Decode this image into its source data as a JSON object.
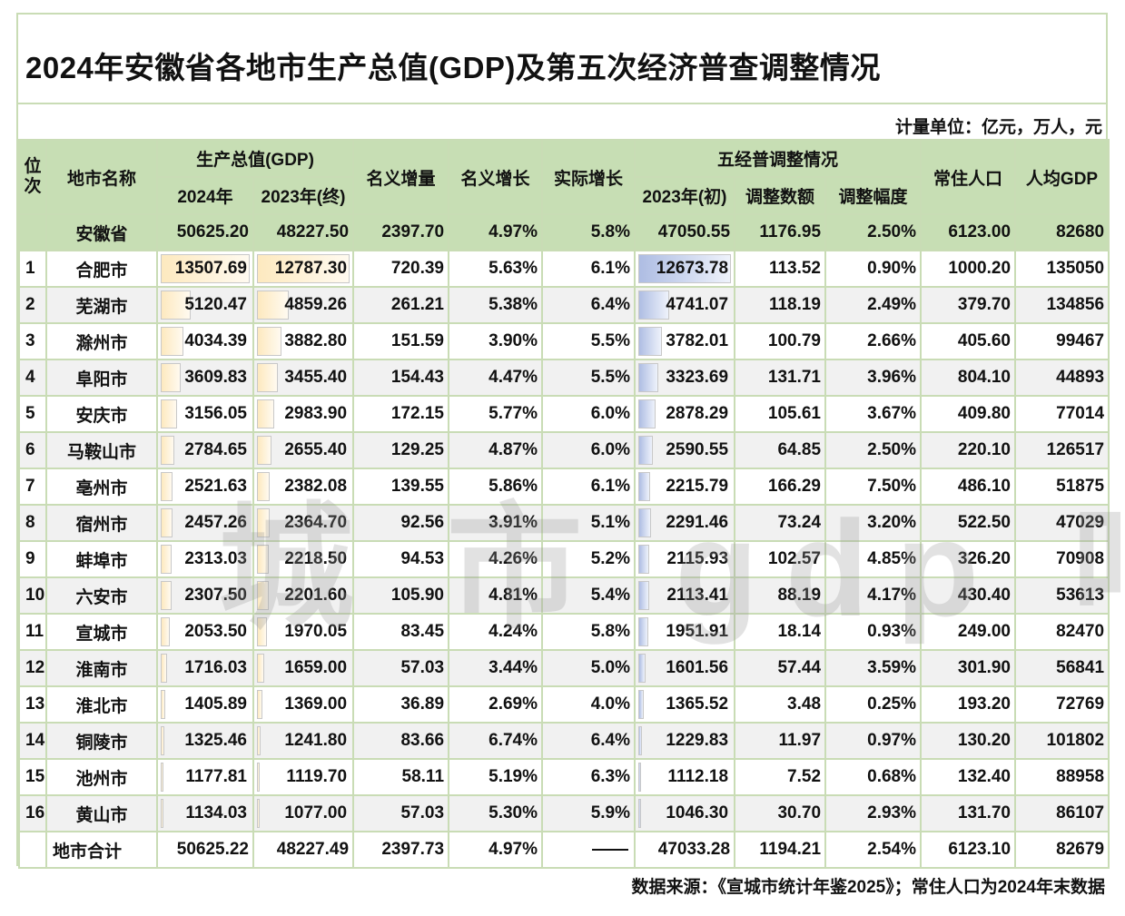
{
  "title": "2024年安徽省各地市生产总值(GDP)及第五次经济普查调整情况",
  "unit": "计量单位：亿元，万人，元",
  "watermark": "城 市 gdp 吧",
  "headers": {
    "rank": "位次",
    "city": "地市名称",
    "gdp_group": "生产总值(GDP)",
    "gdp_2024": "2024年",
    "gdp_2023_final": "2023年(终)",
    "nominal_increase": "名义增量",
    "nominal_growth": "名义增长",
    "real_growth": "实际增长",
    "census_group": "五经普调整情况",
    "gdp_2023_initial": "2023年(初)",
    "adjust_amount": "调整数额",
    "adjust_rate": "调整幅度",
    "population": "常住人口",
    "gdp_per_capita": "人均GDP"
  },
  "province": {
    "name": "安徽省",
    "gdp_2024": "50625.20",
    "gdp_2023_final": "48227.50",
    "nominal_increase": "2397.70",
    "nominal_growth": "4.97%",
    "real_growth": "5.8%",
    "gdp_2023_initial": "47050.55",
    "adjust_amount": "1176.95",
    "adjust_rate": "2.50%",
    "population": "6123.00",
    "gdp_per_capita": "82680"
  },
  "rows": [
    {
      "rank": "1",
      "city": "合肥市",
      "gdp_2024": "13507.69",
      "gdp_2023_final": "12787.30",
      "nominal_increase": "720.39",
      "nominal_growth": "5.63%",
      "real_growth": "6.1%",
      "gdp_2023_initial": "12673.78",
      "adjust_amount": "113.52",
      "adjust_rate": "0.90%",
      "population": "1000.20",
      "gdp_per_capita": "135050"
    },
    {
      "rank": "2",
      "city": "芜湖市",
      "gdp_2024": "5120.47",
      "gdp_2023_final": "4859.26",
      "nominal_increase": "261.21",
      "nominal_growth": "5.38%",
      "real_growth": "6.4%",
      "gdp_2023_initial": "4741.07",
      "adjust_amount": "118.19",
      "adjust_rate": "2.49%",
      "population": "379.70",
      "gdp_per_capita": "134856"
    },
    {
      "rank": "3",
      "city": "滁州市",
      "gdp_2024": "4034.39",
      "gdp_2023_final": "3882.80",
      "nominal_increase": "151.59",
      "nominal_growth": "3.90%",
      "real_growth": "5.5%",
      "gdp_2023_initial": "3782.01",
      "adjust_amount": "100.79",
      "adjust_rate": "2.66%",
      "population": "405.60",
      "gdp_per_capita": "99467"
    },
    {
      "rank": "4",
      "city": "阜阳市",
      "gdp_2024": "3609.83",
      "gdp_2023_final": "3455.40",
      "nominal_increase": "154.43",
      "nominal_growth": "4.47%",
      "real_growth": "5.5%",
      "gdp_2023_initial": "3323.69",
      "adjust_amount": "131.71",
      "adjust_rate": "3.96%",
      "population": "804.10",
      "gdp_per_capita": "44893"
    },
    {
      "rank": "5",
      "city": "安庆市",
      "gdp_2024": "3156.05",
      "gdp_2023_final": "2983.90",
      "nominal_increase": "172.15",
      "nominal_growth": "5.77%",
      "real_growth": "6.0%",
      "gdp_2023_initial": "2878.29",
      "adjust_amount": "105.61",
      "adjust_rate": "3.67%",
      "population": "409.80",
      "gdp_per_capita": "77014"
    },
    {
      "rank": "6",
      "city": "马鞍山市",
      "gdp_2024": "2784.65",
      "gdp_2023_final": "2655.40",
      "nominal_increase": "129.25",
      "nominal_growth": "4.87%",
      "real_growth": "6.0%",
      "gdp_2023_initial": "2590.55",
      "adjust_amount": "64.85",
      "adjust_rate": "2.50%",
      "population": "220.10",
      "gdp_per_capita": "126517"
    },
    {
      "rank": "7",
      "city": "亳州市",
      "gdp_2024": "2521.63",
      "gdp_2023_final": "2382.08",
      "nominal_increase": "139.55",
      "nominal_growth": "5.86%",
      "real_growth": "6.1%",
      "gdp_2023_initial": "2215.79",
      "adjust_amount": "166.29",
      "adjust_rate": "7.50%",
      "population": "486.10",
      "gdp_per_capita": "51875"
    },
    {
      "rank": "8",
      "city": "宿州市",
      "gdp_2024": "2457.26",
      "gdp_2023_final": "2364.70",
      "nominal_increase": "92.56",
      "nominal_growth": "3.91%",
      "real_growth": "5.1%",
      "gdp_2023_initial": "2291.46",
      "adjust_amount": "73.24",
      "adjust_rate": "3.20%",
      "population": "522.50",
      "gdp_per_capita": "47029"
    },
    {
      "rank": "9",
      "city": "蚌埠市",
      "gdp_2024": "2313.03",
      "gdp_2023_final": "2218.50",
      "nominal_increase": "94.53",
      "nominal_growth": "4.26%",
      "real_growth": "5.2%",
      "gdp_2023_initial": "2115.93",
      "adjust_amount": "102.57",
      "adjust_rate": "4.85%",
      "population": "326.20",
      "gdp_per_capita": "70908"
    },
    {
      "rank": "10",
      "city": "六安市",
      "gdp_2024": "2307.50",
      "gdp_2023_final": "2201.60",
      "nominal_increase": "105.90",
      "nominal_growth": "4.81%",
      "real_growth": "5.4%",
      "gdp_2023_initial": "2113.41",
      "adjust_amount": "88.19",
      "adjust_rate": "4.17%",
      "population": "430.40",
      "gdp_per_capita": "53613"
    },
    {
      "rank": "11",
      "city": "宣城市",
      "gdp_2024": "2053.50",
      "gdp_2023_final": "1970.05",
      "nominal_increase": "83.45",
      "nominal_growth": "4.24%",
      "real_growth": "5.8%",
      "gdp_2023_initial": "1951.91",
      "adjust_amount": "18.14",
      "adjust_rate": "0.93%",
      "population": "249.00",
      "gdp_per_capita": "82470"
    },
    {
      "rank": "12",
      "city": "淮南市",
      "gdp_2024": "1716.03",
      "gdp_2023_final": "1659.00",
      "nominal_increase": "57.03",
      "nominal_growth": "3.44%",
      "real_growth": "5.0%",
      "gdp_2023_initial": "1601.56",
      "adjust_amount": "57.44",
      "adjust_rate": "3.59%",
      "population": "301.90",
      "gdp_per_capita": "56841"
    },
    {
      "rank": "13",
      "city": "淮北市",
      "gdp_2024": "1405.89",
      "gdp_2023_final": "1369.00",
      "nominal_increase": "36.89",
      "nominal_growth": "2.69%",
      "real_growth": "4.0%",
      "gdp_2023_initial": "1365.52",
      "adjust_amount": "3.48",
      "adjust_rate": "0.25%",
      "population": "193.20",
      "gdp_per_capita": "72769"
    },
    {
      "rank": "14",
      "city": "铜陵市",
      "gdp_2024": "1325.46",
      "gdp_2023_final": "1241.80",
      "nominal_increase": "83.66",
      "nominal_growth": "6.74%",
      "real_growth": "6.4%",
      "gdp_2023_initial": "1229.83",
      "adjust_amount": "11.97",
      "adjust_rate": "0.97%",
      "population": "130.20",
      "gdp_per_capita": "101802"
    },
    {
      "rank": "15",
      "city": "池州市",
      "gdp_2024": "1177.81",
      "gdp_2023_final": "1119.70",
      "nominal_increase": "58.11",
      "nominal_growth": "5.19%",
      "real_growth": "6.3%",
      "gdp_2023_initial": "1112.18",
      "adjust_amount": "7.52",
      "adjust_rate": "0.68%",
      "population": "132.40",
      "gdp_per_capita": "88958"
    },
    {
      "rank": "16",
      "city": "黄山市",
      "gdp_2024": "1134.03",
      "gdp_2023_final": "1077.00",
      "nominal_increase": "57.03",
      "nominal_growth": "5.30%",
      "real_growth": "5.9%",
      "gdp_2023_initial": "1046.30",
      "adjust_amount": "30.70",
      "adjust_rate": "2.93%",
      "population": "131.70",
      "gdp_per_capita": "86107"
    }
  ],
  "total": {
    "name": "地市合计",
    "gdp_2024": "50625.22",
    "gdp_2023_final": "48227.49",
    "nominal_increase": "2397.73",
    "nominal_growth": "4.97%",
    "real_growth": "——",
    "gdp_2023_initial": "47033.28",
    "adjust_amount": "1194.21",
    "adjust_rate": "2.54%",
    "population": "6123.10",
    "gdp_per_capita": "82679"
  },
  "source": "数据来源：《宣城市统计年鉴2025》；常住人口为2024年末数据",
  "colors": {
    "header_green": "#c7deb4",
    "border_green": "#c9dcb5",
    "bar_gold": "#fde9bf",
    "bar_blue": "#aebde3",
    "stripe_gray": "#f1f1f1"
  }
}
